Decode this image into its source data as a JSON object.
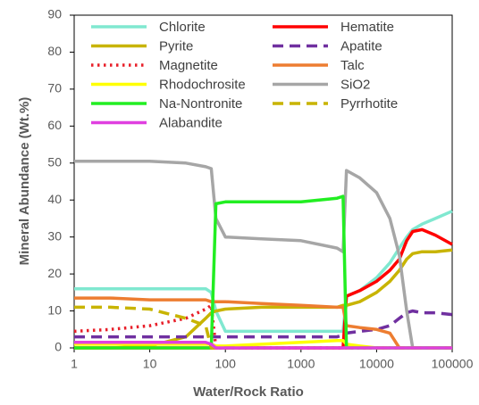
{
  "chart_data": {
    "type": "line",
    "xlabel": "Water/Rock Ratio",
    "ylabel": "Mineral Abundance (Wt.%)",
    "log_x": true,
    "x": [
      1,
      3,
      10,
      30,
      55,
      65,
      75,
      100,
      300,
      1000,
      3000,
      3600,
      4000,
      6000,
      10000,
      15000,
      20000,
      25000,
      30000,
      40000,
      60000,
      100000
    ],
    "xlim": [
      1,
      100000
    ],
    "xticks": [
      1,
      10,
      100,
      1000,
      10000,
      100000
    ],
    "ylim": [
      0,
      90
    ],
    "yticks": [
      0,
      10,
      20,
      30,
      40,
      50,
      60,
      70,
      80,
      90
    ],
    "legend": "top-left",
    "series": [
      {
        "name": "Chlorite",
        "color": "#80e8d0",
        "dash": "solid",
        "values": [
          16,
          16,
          16,
          16,
          16,
          15,
          10,
          4.5,
          4.5,
          4.5,
          4.5,
          4.5,
          14,
          15.5,
          19,
          23,
          27,
          30,
          32,
          33.5,
          35,
          37
        ]
      },
      {
        "name": "Hematite",
        "color": "#ff0000",
        "dash": "solid",
        "values": [
          0,
          0,
          0,
          0,
          0,
          0,
          0,
          0,
          0,
          0,
          0,
          0,
          14,
          15.5,
          18,
          21,
          24,
          29,
          31.5,
          32,
          30.5,
          28
        ]
      },
      {
        "name": "Pyrite",
        "color": "#c8b400",
        "dash": "solid",
        "values": [
          0,
          0,
          0.5,
          3,
          8,
          9.5,
          10,
          10.5,
          11,
          11,
          11,
          11.5,
          11.5,
          12.5,
          15,
          18,
          21,
          24,
          25.5,
          26,
          26,
          26.5
        ]
      },
      {
        "name": "Apatite",
        "color": "#7030a0",
        "dash": "dash",
        "values": [
          3,
          3,
          3,
          3,
          3,
          3,
          3,
          3,
          3,
          3,
          3,
          3.5,
          4,
          4.5,
          5,
          6,
          8,
          9.5,
          10,
          9.5,
          9.5,
          9
        ]
      },
      {
        "name": "Magnetite",
        "color": "#e8202a",
        "dash": "dot",
        "values": [
          4.5,
          5,
          6,
          8,
          10.5,
          11.5,
          0,
          0,
          0,
          0,
          0,
          0,
          0,
          0,
          0,
          0,
          0,
          0,
          0,
          0,
          0,
          0
        ]
      },
      {
        "name": "Talc",
        "color": "#ed7d31",
        "dash": "solid",
        "values": [
          13.5,
          13.5,
          13,
          13,
          13,
          12.5,
          12.5,
          12.5,
          12,
          11.5,
          11,
          11,
          6,
          5.5,
          5,
          4,
          0,
          0,
          0,
          0,
          0,
          0
        ]
      },
      {
        "name": "Rhodochrosite",
        "color": "#ffff00",
        "dash": "solid",
        "values": [
          1,
          1,
          1,
          1,
          1,
          1,
          0.5,
          0.5,
          1,
          1.5,
          2,
          2,
          1,
          0.5,
          0,
          0,
          0,
          0,
          0,
          0,
          0,
          0
        ]
      },
      {
        "name": "SiO2",
        "color": "#a6a6a6",
        "dash": "solid",
        "values": [
          50.5,
          50.5,
          50.5,
          50,
          49,
          48.5,
          35,
          30,
          29.5,
          29,
          27,
          26,
          48,
          46,
          42,
          35,
          25,
          10,
          0,
          0,
          0,
          0
        ]
      },
      {
        "name": "Na-Nontronite",
        "color": "#22ee22",
        "dash": "solid",
        "values": [
          0,
          0,
          0,
          0,
          0,
          0,
          39,
          39.5,
          39.5,
          39.5,
          40.5,
          41,
          0,
          0,
          0,
          0,
          0,
          0,
          0,
          0,
          0,
          0
        ]
      },
      {
        "name": "Pyrrhotite",
        "color": "#c8b400",
        "dash": "dash",
        "values": [
          11,
          11,
          10.5,
          8,
          6,
          0,
          0,
          0,
          0,
          0,
          0,
          0,
          0,
          0,
          0,
          0,
          0,
          0,
          0,
          0,
          0,
          0
        ]
      },
      {
        "name": "Alabandite",
        "color": "#e040e0",
        "dash": "solid",
        "values": [
          1.5,
          1.5,
          1.5,
          1.5,
          1.5,
          1,
          0,
          0,
          0,
          0,
          0,
          0,
          0,
          0,
          0,
          0,
          0,
          0,
          0,
          0,
          0,
          0
        ]
      }
    ]
  }
}
